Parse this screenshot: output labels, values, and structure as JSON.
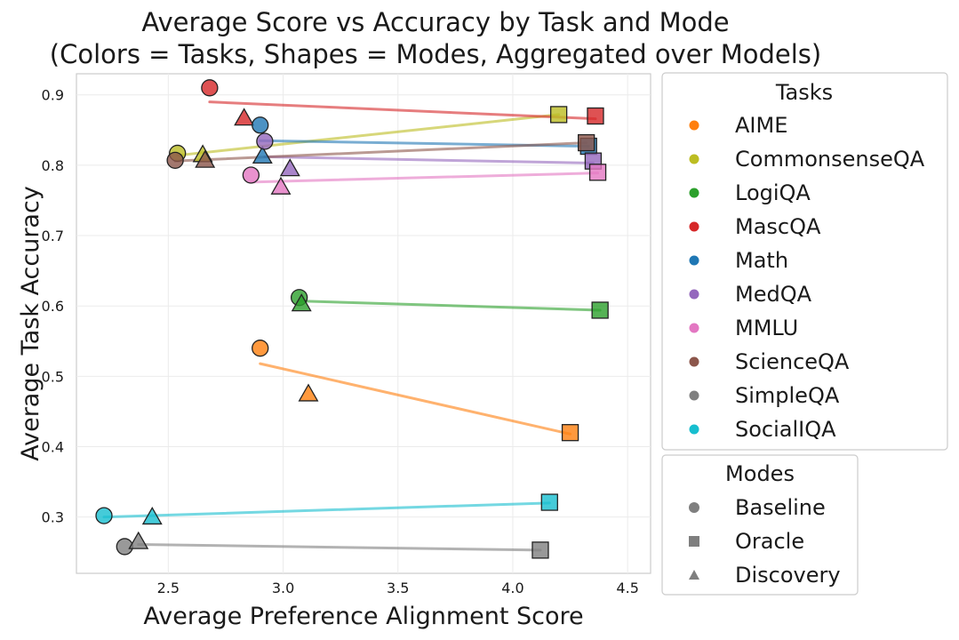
{
  "chart_data": {
    "type": "scatter",
    "title_line1": "Average Score vs Accuracy by Task and Mode",
    "title_line2": "(Colors = Tasks, Shapes = Modes, Aggregated over Models)",
    "xlabel": "Average Preference Alignment Score",
    "ylabel": "Average Task Accuracy",
    "xlim": [
      2.1,
      4.6
    ],
    "ylim": [
      0.22,
      0.93
    ],
    "xticks": [
      2.5,
      3.0,
      3.5,
      4.0,
      4.5
    ],
    "xtick_labels": [
      "2.5",
      "3.0",
      "3.5",
      "4.0",
      "4.5"
    ],
    "yticks": [
      0.3,
      0.4,
      0.5,
      0.6,
      0.7,
      0.8,
      0.9
    ],
    "ytick_labels": [
      "0.3",
      "0.4",
      "0.5",
      "0.6",
      "0.7",
      "0.8",
      "0.9"
    ],
    "grid": true,
    "tasks_legend_title": "Tasks",
    "modes_legend_title": "Modes",
    "legend_placement": "outside-right",
    "modes": [
      {
        "name": "Baseline",
        "shape": "circle"
      },
      {
        "name": "Oracle",
        "shape": "square"
      },
      {
        "name": "Discovery",
        "shape": "triangle"
      }
    ],
    "series": [
      {
        "name": "AIME",
        "color": "#ff7f0e",
        "points": {
          "Baseline": [
            2.9,
            0.54
          ],
          "Oracle": [
            4.25,
            0.42
          ],
          "Discovery": [
            3.11,
            0.475
          ]
        },
        "trend": [
          [
            2.9,
            0.518
          ],
          [
            4.25,
            0.418
          ]
        ]
      },
      {
        "name": "CommonsenseQA",
        "color": "#bcbd22",
        "points": {
          "Baseline": [
            2.54,
            0.817
          ],
          "Oracle": [
            4.2,
            0.872
          ],
          "Discovery": [
            2.65,
            0.815
          ]
        },
        "trend": [
          [
            2.54,
            0.814
          ],
          [
            4.2,
            0.872
          ]
        ]
      },
      {
        "name": "LogiQA",
        "color": "#2ca02c",
        "points": {
          "Baseline": [
            3.07,
            0.612
          ],
          "Oracle": [
            4.38,
            0.594
          ],
          "Discovery": [
            3.08,
            0.603
          ]
        },
        "trend": [
          [
            3.07,
            0.607
          ],
          [
            4.38,
            0.594
          ]
        ]
      },
      {
        "name": "MascQA",
        "color": "#d62728",
        "points": {
          "Baseline": [
            2.68,
            0.91
          ],
          "Oracle": [
            4.36,
            0.87
          ],
          "Discovery": [
            2.83,
            0.867
          ]
        },
        "trend": [
          [
            2.68,
            0.89
          ],
          [
            4.36,
            0.866
          ]
        ]
      },
      {
        "name": "Math",
        "color": "#1f77b4",
        "points": {
          "Baseline": [
            2.9,
            0.857
          ],
          "Oracle": [
            4.33,
            0.827
          ],
          "Discovery": [
            2.91,
            0.813
          ]
        },
        "trend": [
          [
            2.9,
            0.835
          ],
          [
            4.33,
            0.827
          ]
        ]
      },
      {
        "name": "MedQA",
        "color": "#9467bd",
        "points": {
          "Baseline": [
            2.92,
            0.834
          ],
          "Oracle": [
            4.35,
            0.806
          ],
          "Discovery": [
            3.03,
            0.795
          ]
        },
        "trend": [
          [
            2.92,
            0.812
          ],
          [
            4.35,
            0.803
          ]
        ]
      },
      {
        "name": "MMLU",
        "color": "#e377c2",
        "points": {
          "Baseline": [
            2.86,
            0.786
          ],
          "Oracle": [
            4.37,
            0.79
          ],
          "Discovery": [
            2.99,
            0.769
          ]
        },
        "trend": [
          [
            2.86,
            0.776
          ],
          [
            4.37,
            0.789
          ]
        ]
      },
      {
        "name": "ScienceQA",
        "color": "#8c564b",
        "points": {
          "Baseline": [
            2.53,
            0.807
          ],
          "Oracle": [
            4.32,
            0.832
          ],
          "Discovery": [
            2.66,
            0.807
          ]
        },
        "trend": [
          [
            2.53,
            0.806
          ],
          [
            4.32,
            0.832
          ]
        ]
      },
      {
        "name": "SimpleQA",
        "color": "#7f7f7f",
        "points": {
          "Baseline": [
            2.31,
            0.258
          ],
          "Oracle": [
            4.12,
            0.253
          ],
          "Discovery": [
            2.37,
            0.265
          ]
        },
        "trend": [
          [
            2.37,
            0.261
          ],
          [
            4.12,
            0.253
          ]
        ]
      },
      {
        "name": "SocialIQA",
        "color": "#17becf",
        "points": {
          "Baseline": [
            2.22,
            0.302
          ],
          "Oracle": [
            4.16,
            0.321
          ],
          "Discovery": [
            2.43,
            0.3
          ]
        },
        "trend": [
          [
            2.22,
            0.3
          ],
          [
            4.16,
            0.32
          ]
        ]
      }
    ]
  }
}
